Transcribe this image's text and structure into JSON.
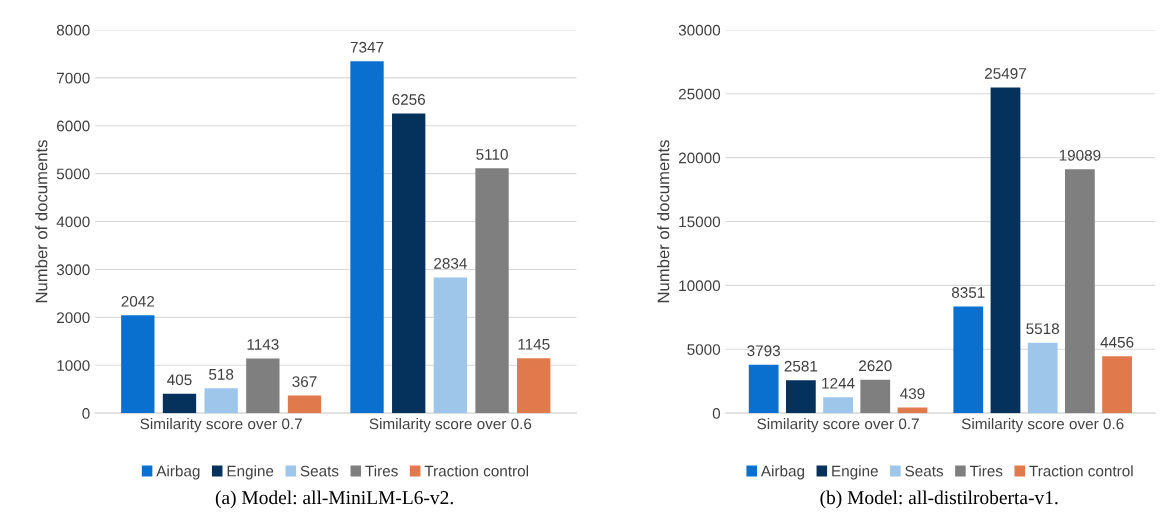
{
  "chart_data": [
    {
      "type": "bar",
      "ylabel": "Number of documents",
      "categories": [
        "Similarity score over 0.7",
        "Similarity score over 0.6"
      ],
      "ylim": [
        0,
        8000
      ],
      "yticks": [
        0,
        1000,
        2000,
        3000,
        4000,
        5000,
        6000,
        7000,
        8000
      ],
      "grid": "y",
      "legend": "bottom",
      "data_labels": true,
      "series": [
        {
          "name": "Airbag",
          "color": "#0a70d0",
          "values": [
            2042,
            7347
          ]
        },
        {
          "name": "Engine",
          "color": "#05325c",
          "values": [
            405,
            6256
          ]
        },
        {
          "name": "Seats",
          "color": "#9dc6ea",
          "values": [
            518,
            2834
          ]
        },
        {
          "name": "Tires",
          "color": "#7f7f7f",
          "values": [
            1143,
            5110
          ]
        },
        {
          "name": "Traction control",
          "color": "#e07a4c",
          "values": [
            367,
            1145
          ]
        }
      ],
      "annotations": [
        "(a) Model: all-MiniLM-L6-v2."
      ]
    },
    {
      "type": "bar",
      "ylabel": "Number of documents",
      "categories": [
        "Similarity score over 0.7",
        "Similarity score over 0.6"
      ],
      "ylim": [
        0,
        30000
      ],
      "yticks": [
        0,
        5000,
        10000,
        15000,
        20000,
        25000,
        30000
      ],
      "grid": "y",
      "legend": "bottom",
      "data_labels": true,
      "series": [
        {
          "name": "Airbag",
          "color": "#0a70d0",
          "values": [
            3793,
            8351
          ]
        },
        {
          "name": "Engine",
          "color": "#05325c",
          "values": [
            2581,
            25497
          ]
        },
        {
          "name": "Seats",
          "color": "#9dc6ea",
          "values": [
            1244,
            5518
          ]
        },
        {
          "name": "Tires",
          "color": "#7f7f7f",
          "values": [
            2620,
            19089
          ]
        },
        {
          "name": "Traction control",
          "color": "#e07a4c",
          "values": [
            439,
            4456
          ]
        }
      ],
      "annotations": [
        "(b) Model: all-distilroberta-v1."
      ]
    }
  ]
}
